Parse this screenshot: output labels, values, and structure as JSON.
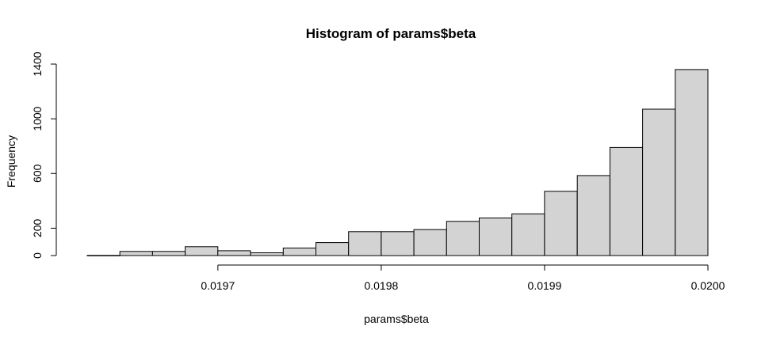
{
  "chart_data": {
    "type": "bar",
    "title": "Histogram of params$beta",
    "xlabel": "params$beta",
    "ylabel": "Frequency",
    "bin_edges": [
      0.01962,
      0.01964,
      0.01966,
      0.01968,
      0.0197,
      0.01972,
      0.01974,
      0.01976,
      0.01978,
      0.0198,
      0.01982,
      0.01984,
      0.01986,
      0.01988,
      0.0199,
      0.01992,
      0.01994,
      0.01996,
      0.01998,
      0.02
    ],
    "values": [
      1,
      30,
      30,
      65,
      35,
      20,
      55,
      95,
      175,
      175,
      190,
      250,
      275,
      305,
      470,
      585,
      790,
      1070,
      1360
    ],
    "xlim": [
      0.01962,
      0.02
    ],
    "ylim": [
      0,
      1400
    ],
    "x_ticks": [
      0.0197,
      0.0198,
      0.0199,
      0.02
    ],
    "x_tick_labels": [
      "0.0197",
      "0.0198",
      "0.0199",
      "0.0200"
    ],
    "y_ticks": [
      0,
      200,
      600,
      1000,
      1400
    ],
    "y_tick_labels": [
      "0",
      "200",
      "600",
      "1000",
      "1400"
    ],
    "grid": false,
    "bar_color": "#d3d3d3",
    "edge_color": "#000000"
  }
}
